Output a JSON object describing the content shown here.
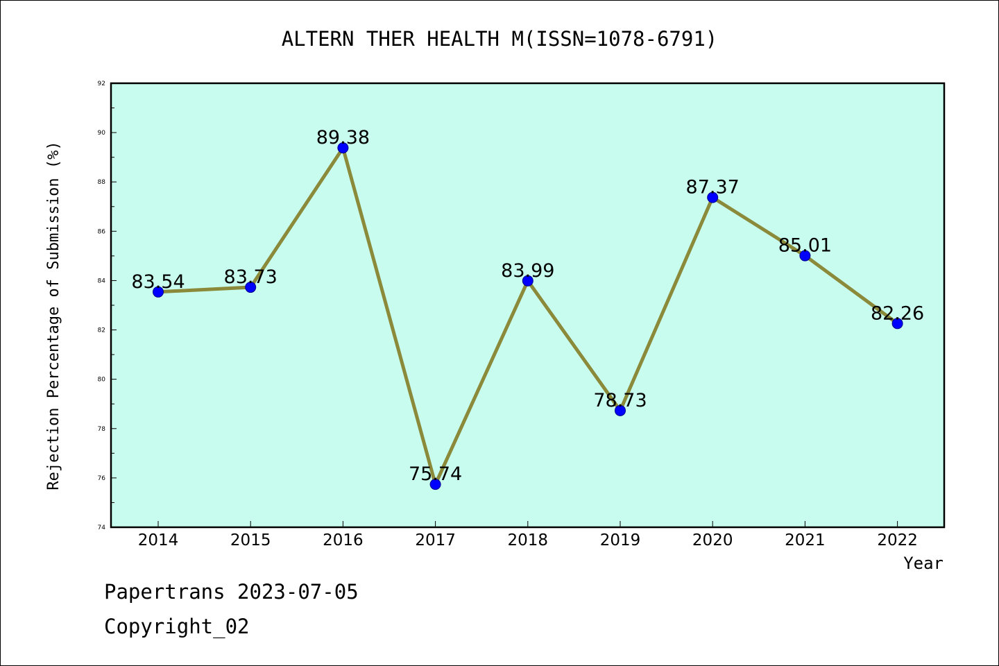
{
  "chart_data": {
    "type": "line",
    "title": "ALTERN THER HEALTH M(ISSN=1078-6791)",
    "xlabel": "Year",
    "ylabel": "Rejection Percentage of Submission (%)",
    "categories": [
      "2014",
      "2015",
      "2016",
      "2017",
      "2018",
      "2019",
      "2020",
      "2021",
      "2022"
    ],
    "series": [
      {
        "values": [
          83.54,
          83.73,
          89.38,
          75.74,
          83.99,
          78.73,
          87.37,
          85.01,
          82.26
        ],
        "data_labels": [
          "83.54",
          "83.73",
          "89.38",
          "75.74",
          "83.99",
          "78.73",
          "87.37",
          "85.01",
          "82.26"
        ]
      }
    ],
    "ylim": [
      74,
      92
    ],
    "yticks": [
      "74",
      "76",
      "78",
      "80",
      "82",
      "84",
      "86",
      "88",
      "90",
      "92"
    ],
    "grid": false,
    "legend": "none",
    "colors": {
      "plot_background": "#c8fcee",
      "line": "#8b8a3a",
      "marker": "#0000ff"
    }
  },
  "footer": {
    "line1": "Papertrans 2023-07-05",
    "line2": "Copyright_02"
  }
}
